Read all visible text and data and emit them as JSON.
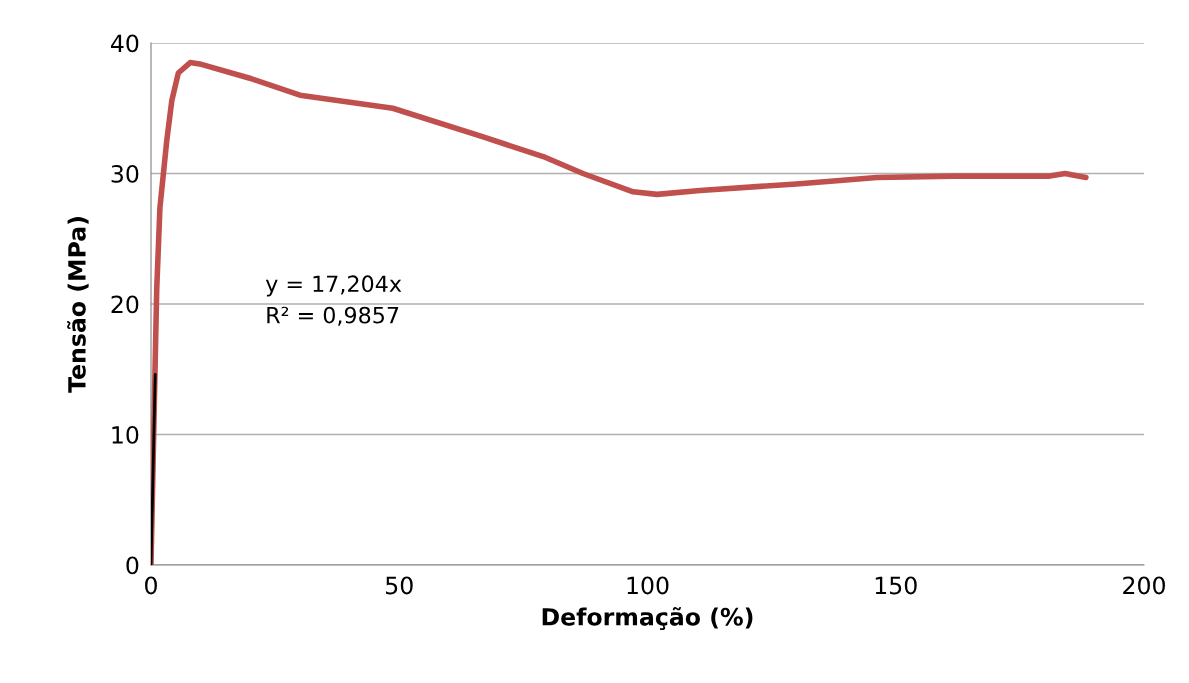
{
  "chart_data": {
    "type": "line",
    "xlabel": "Deformação (%)",
    "ylabel": "Tensão (MPa)",
    "xlim": [
      0,
      200
    ],
    "xticks": [
      0,
      50,
      100,
      150,
      200
    ],
    "ylim": [
      0,
      40
    ],
    "yticks": [
      0,
      10,
      20,
      30,
      40
    ],
    "grid": "y",
    "legend": false,
    "marker": "none",
    "line_style": "solid",
    "annotations": [
      "y = 17,204x",
      "R² = 0,9857"
    ],
    "series": [
      {
        "color": "#c0504d",
        "x": [
          0,
          0.8,
          1.15,
          1.8,
          2.5,
          3.2,
          4.2,
          5.5,
          7.9,
          9.8,
          19.9,
          30.0,
          48.7,
          66.9,
          79.0,
          87.0,
          97.1,
          101.9,
          110.6,
          130,
          146.2,
          161.7,
          181,
          184.1,
          188.3
        ],
        "values": [
          0,
          14.7,
          21.1,
          27.4,
          30.0,
          32.6,
          35.6,
          37.7,
          38.5,
          38.4,
          37.3,
          36.0,
          35.0,
          32.8,
          31.3,
          30.0,
          28.6,
          28.4,
          28.7,
          29.2,
          29.7,
          29.8,
          29.8,
          30.0,
          29.7
        ]
      },
      {
        "color": "#000000",
        "x": [
          0,
          0.85
        ],
        "values": [
          0,
          14.6
        ]
      }
    ]
  }
}
